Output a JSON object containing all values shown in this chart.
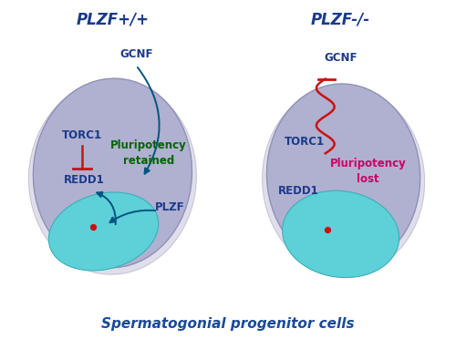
{
  "background_color": "#ffffff",
  "title": "Spermatogonial progenitor cells",
  "title_color": "#1a4a9a",
  "title_fontsize": 11,
  "left_title": "PLZF+/+",
  "right_title": "PLZF-/-",
  "header_color": "#1a3a8a",
  "header_fontsize": 12,
  "cell_color": "#b0b0d0",
  "cell_edge_color": "#9090b8",
  "nucleus_color": "#5dd0d8",
  "nucleus_edge_color": "#3ab0b8",
  "dot_color": "#cc1111",
  "dot_size": 18,
  "label_fontsize": 8.5,
  "gcnf_color": "#1a3a8a",
  "torc1_color": "#1a3a8a",
  "redd1_color": "#1a3a8a",
  "plzf_color": "#1a3a8a",
  "pluripotency_retained_color": "#006600",
  "pluripotency_lost_color": "#cc0066",
  "arrow_blue_color": "#005580",
  "arrow_red_color": "#cc1111",
  "inhibit_red_color": "#cc1111"
}
